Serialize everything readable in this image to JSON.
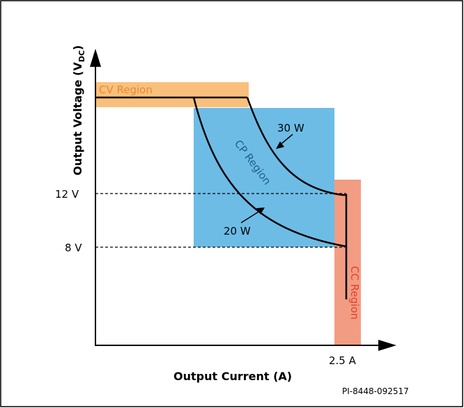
{
  "axes": {
    "x_title": "Output Current (A)",
    "y_title_main": "Output Voltage (V",
    "y_title_sub": "DC",
    "y_title_close": ")"
  },
  "ticks": {
    "v12": "12 V",
    "v8": "8 V",
    "i_max": "2.5 A"
  },
  "regions": {
    "cv": "CV Region",
    "cp": "CP Region",
    "cc": "CC Region"
  },
  "curves": {
    "p30": "30 W",
    "p20": "20 W"
  },
  "footer": {
    "doc_id": "PI-8448-092517"
  },
  "colors": {
    "cv_region": "#f9c07d",
    "cp_region": "#6dbce6",
    "cc_region": "#f29c83",
    "cv_text": "#ea8a2f",
    "cp_text": "#1f5f8e",
    "cc_text": "#e6402a"
  }
}
